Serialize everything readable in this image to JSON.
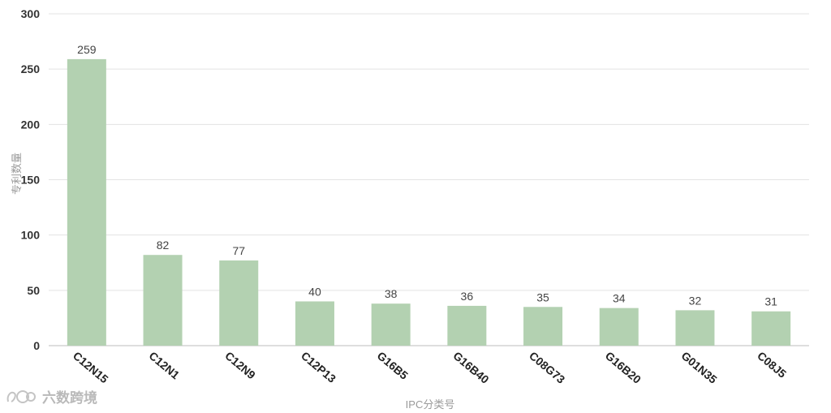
{
  "chart_data": {
    "type": "bar",
    "categories": [
      "C12N15",
      "C12N1",
      "C12N9",
      "C12P13",
      "G16B5",
      "G16B40",
      "C08G73",
      "G16B20",
      "G01N35",
      "C08J5"
    ],
    "values": [
      259,
      82,
      77,
      40,
      38,
      36,
      35,
      34,
      32,
      31
    ],
    "xlabel": "IPC分类号",
    "ylabel": "专利数量",
    "ylim": [
      0,
      300
    ],
    "yticks": [
      0,
      50,
      100,
      150,
      200,
      250,
      300
    ],
    "grid": true,
    "bar_color": "#b3d1b1"
  },
  "watermark": {
    "text": "六数跨境"
  }
}
